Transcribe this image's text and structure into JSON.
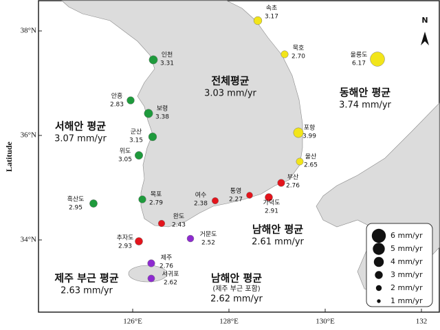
{
  "map": {
    "y_axis_label": "Latitude",
    "lat_ticks": [
      {
        "value": 38,
        "label": "38°N"
      },
      {
        "value": 36,
        "label": "36°N"
      },
      {
        "value": 34,
        "label": "34°N"
      }
    ],
    "lon_ticks": [
      {
        "value": 126,
        "label": "126°E"
      },
      {
        "value": 128,
        "label": "128°E"
      },
      {
        "value": 130,
        "label": "130°E"
      },
      {
        "value": 132,
        "label": "132"
      }
    ],
    "north_label": "N",
    "stations": [
      {
        "name": "속초",
        "value": 3.17,
        "color": "#f2e51a"
      },
      {
        "name": "묵호",
        "value": 2.7,
        "value_label": "2.70",
        "color": "#f2e51a"
      },
      {
        "name": "울릉도",
        "value": 6.17,
        "color": "#f2e51a"
      },
      {
        "name": "포항",
        "value": 3.99,
        "color": "#f2e51a"
      },
      {
        "name": "울산",
        "value": 2.65,
        "color": "#f2e51a"
      },
      {
        "name": "부산",
        "value": 2.76,
        "color": "#e3141c"
      },
      {
        "name": "가덕도",
        "value": 2.91,
        "color": "#e3141c"
      },
      {
        "name": "통영",
        "value": 2.27,
        "color": "#e3141c"
      },
      {
        "name": "여수",
        "value": 2.38,
        "color": "#e3141c"
      },
      {
        "name": "완도",
        "value": 2.43,
        "color": "#e3141c"
      },
      {
        "name": "추자도",
        "value": 2.93,
        "color": "#e3141c"
      },
      {
        "name": "거문도",
        "value": 2.52,
        "color": "#8e2bd0"
      },
      {
        "name": "제주",
        "value": 2.76,
        "color": "#8e2bd0"
      },
      {
        "name": "서귀포",
        "value": 2.62,
        "color": "#8e2bd0"
      },
      {
        "name": "흑산도",
        "value": 2.95,
        "color": "#1e9a3c"
      },
      {
        "name": "목포",
        "value": 2.79,
        "color": "#1e9a3c"
      },
      {
        "name": "위도",
        "value": 3.05,
        "color": "#1e9a3c"
      },
      {
        "name": "군산",
        "value": 3.15,
        "color": "#1e9a3c"
      },
      {
        "name": "보령",
        "value": 3.38,
        "color": "#1e9a3c"
      },
      {
        "name": "안흥",
        "value": 2.83,
        "color": "#1e9a3c"
      },
      {
        "name": "인천",
        "value": 3.31,
        "color": "#1e9a3c"
      }
    ],
    "averages": [
      {
        "name": "전체평균",
        "value": 3.03,
        "label": "3.03 mm/yr"
      },
      {
        "name": "동해안 평균",
        "value": 3.74,
        "label": "3.74 mm/yr"
      },
      {
        "name": "서해안 평균",
        "value": 3.07,
        "label": "3.07 mm/yr"
      },
      {
        "name": "남해안 평균",
        "value": 2.61,
        "label": "2.61 mm/yr"
      },
      {
        "name": "제주 부근 평균",
        "value": 2.63,
        "label": "2.63 mm/yr"
      },
      {
        "name": "남해안 평균",
        "note": "(제주 부근 포함)",
        "value": 2.62,
        "label": "2.62 mm/yr"
      }
    ],
    "legend": [
      {
        "value": 6,
        "label": "6 mm/yr"
      },
      {
        "value": 5,
        "label": "5 mm/yr"
      },
      {
        "value": 4,
        "label": "4 mm/yr"
      },
      {
        "value": 3,
        "label": "3 mm/yr"
      },
      {
        "value": 2,
        "label": "2 mm/yr"
      },
      {
        "value": 1,
        "label": "1 mm/yr"
      }
    ]
  }
}
